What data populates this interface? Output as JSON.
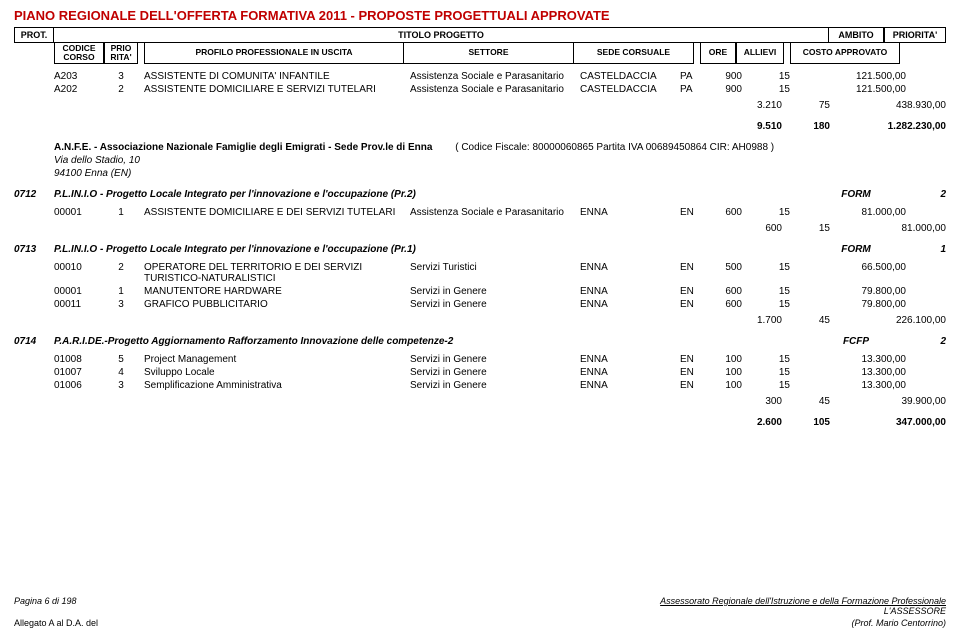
{
  "title_main": "PIANO REGIONALE DELL'OFFERTA FORMATIVA 2011 - PROPOSTE PROGETTUALI APPROVATE",
  "hdr": {
    "prot": "PROT.",
    "titolo": "TITOLO PROGETTO",
    "ambito": "AMBITO",
    "priorita": "PRIORITA'",
    "codice": "CODICE CORSO",
    "prio": "PRIO RITA'",
    "profilo": "PROFILO PROFESSIONALE IN USCITA",
    "settore": "SETTORE",
    "sede": "SEDE CORSUALE",
    "ore": "ORE",
    "allievi": "ALLIEVI",
    "costo": "COSTO APPROVATO"
  },
  "block1": {
    "rows": [
      {
        "codice": "A203",
        "prio": "3",
        "profilo": "ASSISTENTE DI COMUNITA' INFANTILE",
        "settore": "Assistenza Sociale e Parasanitario",
        "sede": "CASTELDACCIA",
        "prov": "PA",
        "ore": "900",
        "allievi": "15",
        "costo": "121.500,00"
      },
      {
        "codice": "A202",
        "prio": "2",
        "profilo": "ASSISTENTE DOMICILIARE E SERVIZI TUTELARI",
        "settore": "Assistenza Sociale e Parasanitario",
        "sede": "CASTELDACCIA",
        "prov": "PA",
        "ore": "900",
        "allievi": "15",
        "costo": "121.500,00"
      }
    ],
    "subtotal": {
      "ore": "3.210",
      "allievi": "75",
      "costo": "438.930,00"
    },
    "grand": {
      "ore": "9.510",
      "allievi": "180",
      "costo": "1.282.230,00"
    }
  },
  "org": {
    "name": "A.N.F.E. - Associazione Nazionale Famiglie degli Emigrati - Sede Prov.le di Enna",
    "extra": "( Codice Fiscale: 80000060865     Partita IVA 00689450864     CIR:  AH0988 )",
    "addr": "Via dello Stadio, 10",
    "city": "94100 Enna (EN)"
  },
  "p0712": {
    "prot": "0712",
    "title": "P.L.IN.I.O - Progetto Locale Integrato per l'innovazione e l'occupazione (Pr.2)",
    "ambito": "FORM",
    "priorita": "2",
    "rows": [
      {
        "codice": "00001",
        "prio": "1",
        "profilo": "ASSISTENTE DOMICILIARE E DEI SERVIZI TUTELARI",
        "settore": "Assistenza Sociale e Parasanitario",
        "sede": "ENNA",
        "prov": "EN",
        "ore": "600",
        "allievi": "15",
        "costo": "81.000,00"
      }
    ],
    "subtotal": {
      "ore": "600",
      "allievi": "15",
      "costo": "81.000,00"
    }
  },
  "p0713": {
    "prot": "0713",
    "title": "P.L.IN.I.O - Progetto Locale Integrato per l'innovazione e l'occupazione (Pr.1)",
    "ambito": "FORM",
    "priorita": "1",
    "rows": [
      {
        "codice": "00010",
        "prio": "2",
        "profilo": "OPERATORE DEL TERRITORIO E DEI SERVIZI TURISTICO-NATURALISTICI",
        "settore": "Servizi Turistici",
        "sede": "ENNA",
        "prov": "EN",
        "ore": "500",
        "allievi": "15",
        "costo": "66.500,00"
      },
      {
        "codice": "00001",
        "prio": "1",
        "profilo": "MANUTENTORE HARDWARE",
        "settore": "Servizi in Genere",
        "sede": "ENNA",
        "prov": "EN",
        "ore": "600",
        "allievi": "15",
        "costo": "79.800,00"
      },
      {
        "codice": "00011",
        "prio": "3",
        "profilo": "GRAFICO PUBBLICITARIO",
        "settore": "Servizi in Genere",
        "sede": "ENNA",
        "prov": "EN",
        "ore": "600",
        "allievi": "15",
        "costo": "79.800,00"
      }
    ],
    "subtotal": {
      "ore": "1.700",
      "allievi": "45",
      "costo": "226.100,00"
    }
  },
  "p0714": {
    "prot": "0714",
    "title": "P.A.R.I.DE.-Progetto Aggiornamento Rafforzamento Innovazione delle competenze-2",
    "ambito": "FCFP",
    "priorita": "2",
    "rows": [
      {
        "codice": "01008",
        "prio": "5",
        "profilo": "Project Management",
        "settore": "Servizi in Genere",
        "sede": "ENNA",
        "prov": "EN",
        "ore": "100",
        "allievi": "15",
        "costo": "13.300,00"
      },
      {
        "codice": "01007",
        "prio": "4",
        "profilo": "Sviluppo Locale",
        "settore": "Servizi in Genere",
        "sede": "ENNA",
        "prov": "EN",
        "ore": "100",
        "allievi": "15",
        "costo": "13.300,00"
      },
      {
        "codice": "01006",
        "prio": "3",
        "profilo": "Semplificazione Amministrativa",
        "settore": "Servizi in Genere",
        "sede": "ENNA",
        "prov": "EN",
        "ore": "100",
        "allievi": "15",
        "costo": "13.300,00"
      }
    ],
    "subtotal": {
      "ore": "300",
      "allievi": "45",
      "costo": "39.900,00"
    },
    "grand": {
      "ore": "2.600",
      "allievi": "105",
      "costo": "347.000,00"
    }
  },
  "footer": {
    "page": "Pagina 6 di 198",
    "assessorato": "Assessorato Regionale dell'Istruzione e della Formazione Professionale",
    "lassessore": "L'ASSESSORE",
    "allegato": "Allegato A al D.A.             del",
    "prof": "(Prof. Mario Centorrino)"
  }
}
